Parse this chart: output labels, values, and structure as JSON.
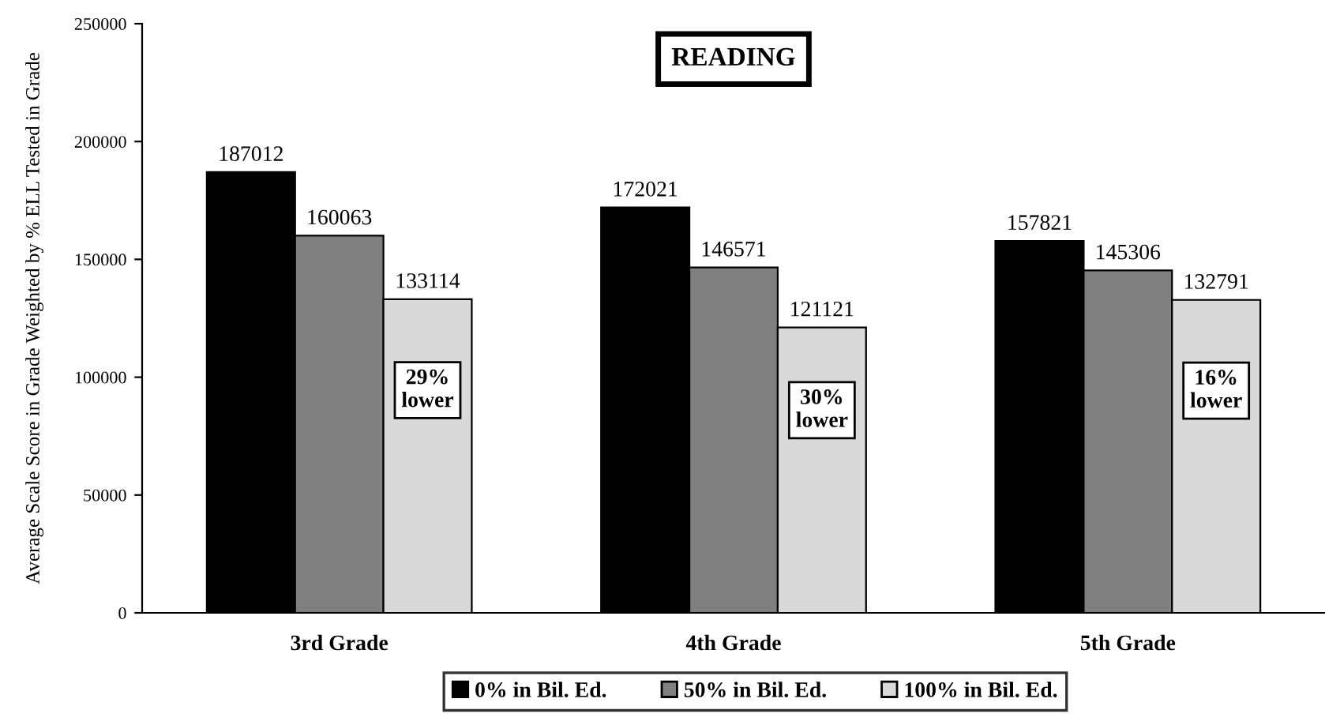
{
  "chart_data": {
    "type": "bar",
    "title": "READING",
    "ylabel": "Average Scale Score in Grade Weighted by % ELL Tested in Grade",
    "categories": [
      "3rd Grade",
      "4th Grade",
      "5th Grade"
    ],
    "series": [
      {
        "name": "0% in Bil. Ed.",
        "color": "#000000",
        "values": [
          187012,
          172021,
          157821
        ]
      },
      {
        "name": "50% in Bil. Ed.",
        "color": "#808080",
        "values": [
          160063,
          146571,
          145306
        ]
      },
      {
        "name": "100% in Bil. Ed.",
        "color": "#d9d9d9",
        "values": [
          133114,
          121121,
          132791
        ]
      }
    ],
    "ylim": [
      0,
      250000
    ],
    "yticks": [
      0,
      50000,
      100000,
      150000,
      200000,
      250000
    ],
    "grid": false,
    "legend": "bottom",
    "data_labels": true,
    "annotations": [
      "29%\nlower",
      "30%\nlower",
      "16%\nlower"
    ]
  }
}
